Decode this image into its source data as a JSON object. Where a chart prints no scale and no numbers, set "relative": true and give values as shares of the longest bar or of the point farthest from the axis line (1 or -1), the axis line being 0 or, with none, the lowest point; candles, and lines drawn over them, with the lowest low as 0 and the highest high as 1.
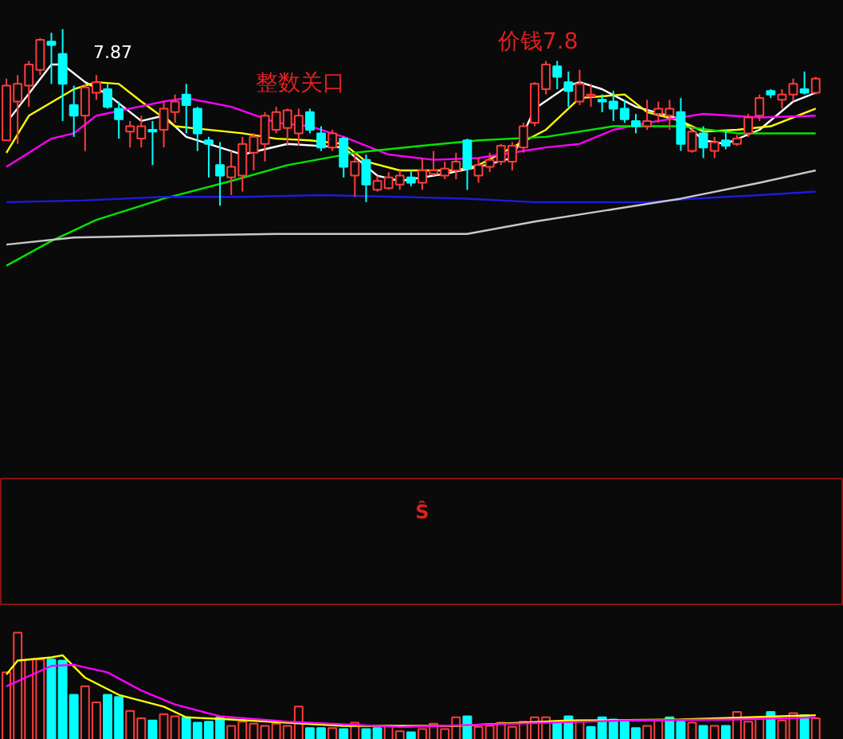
{
  "chart_data": [
    {
      "type": "candlestick",
      "relative": true,
      "categories": [
        null,
        null,
        null,
        null,
        null,
        null,
        null,
        null,
        null,
        null,
        null,
        null,
        null,
        null,
        null,
        null,
        null,
        null,
        null,
        null,
        null,
        null,
        null,
        null,
        null,
        null,
        null,
        null,
        null,
        null,
        null,
        null,
        null,
        null,
        null,
        null,
        null,
        null,
        null,
        null,
        null,
        null,
        null,
        null,
        null,
        null,
        null,
        null,
        null,
        null,
        null,
        null,
        null,
        null,
        null,
        null,
        null,
        null,
        null,
        null,
        null,
        null,
        null,
        null,
        null,
        null,
        null,
        null,
        null,
        null,
        null,
        null,
        null
      ],
      "ohlc": [
        [
          0.37,
          0.72,
          0.37,
          0.68
        ],
        [
          0.59,
          0.74,
          0.35,
          0.69
        ],
        [
          0.68,
          0.82,
          0.56,
          0.8
        ],
        [
          0.77,
          0.95,
          0.74,
          0.94
        ],
        [
          0.93,
          0.98,
          0.69,
          0.91
        ],
        [
          0.86,
          1.0,
          0.48,
          0.69
        ],
        [
          0.57,
          0.68,
          0.39,
          0.51
        ],
        [
          0.51,
          0.69,
          0.31,
          0.67
        ],
        [
          0.64,
          0.74,
          0.6,
          0.7
        ],
        [
          0.66,
          0.69,
          0.55,
          0.56
        ],
        [
          0.55,
          0.59,
          0.38,
          0.49
        ],
        [
          0.42,
          0.48,
          0.33,
          0.45
        ],
        [
          0.38,
          0.51,
          0.33,
          0.45
        ],
        [
          0.43,
          0.48,
          0.23,
          0.42
        ],
        [
          0.43,
          0.59,
          0.33,
          0.55
        ],
        [
          0.53,
          0.63,
          0.47,
          0.59
        ],
        [
          0.63,
          0.69,
          0.41,
          0.57
        ],
        [
          0.55,
          0.56,
          0.31,
          0.41
        ],
        [
          0.37,
          0.39,
          0.16,
          0.35
        ],
        [
          0.23,
          0.36,
          0,
          0.17
        ],
        [
          0.16,
          0.31,
          0.06,
          0.22
        ],
        [
          0.17,
          0.39,
          0.08,
          0.35
        ],
        [
          0.3,
          0.41,
          0.2,
          0.39
        ],
        [
          0.35,
          0.53,
          0.25,
          0.51
        ],
        [
          0.43,
          0.56,
          0.41,
          0.53
        ],
        [
          0.44,
          0.55,
          0.34,
          0.54
        ],
        [
          0.41,
          0.55,
          0.34,
          0.51
        ],
        [
          0.53,
          0.55,
          0.41,
          0.43
        ],
        [
          0.41,
          0.45,
          0.31,
          0.33
        ],
        [
          0.33,
          0.43,
          0.31,
          0.41
        ],
        [
          0.38,
          0.39,
          0.16,
          0.22
        ],
        [
          0.17,
          0.3,
          0.05,
          0.25
        ],
        [
          0.26,
          0.29,
          0.02,
          0.12
        ],
        [
          0.09,
          0.17,
          0.08,
          0.14
        ],
        [
          0.1,
          0.19,
          0.09,
          0.16
        ],
        [
          0.12,
          0.2,
          0.09,
          0.17
        ],
        [
          0.16,
          0.2,
          0.11,
          0.13
        ],
        [
          0.13,
          0.27,
          0.09,
          0.2
        ],
        [
          0.18,
          0.31,
          0.17,
          0.2
        ],
        [
          0.17,
          0.25,
          0.15,
          0.21
        ],
        [
          0.2,
          0.3,
          0.15,
          0.25
        ],
        [
          0.37,
          0.38,
          0.09,
          0.21
        ],
        [
          0.17,
          0.27,
          0.13,
          0.23
        ],
        [
          0.22,
          0.3,
          0.19,
          0.26
        ],
        [
          0.25,
          0.35,
          0.23,
          0.34
        ],
        [
          0.25,
          0.36,
          0.2,
          0.34
        ],
        [
          0.33,
          0.47,
          0.3,
          0.45
        ],
        [
          0.47,
          0.7,
          0.45,
          0.69
        ],
        [
          0.66,
          0.82,
          0.63,
          0.8
        ],
        [
          0.79,
          0.82,
          0.66,
          0.73
        ],
        [
          0.7,
          0.76,
          0.56,
          0.65
        ],
        [
          0.59,
          0.77,
          0.57,
          0.69
        ],
        [
          0.62,
          0.69,
          0.56,
          0.63
        ],
        [
          0.6,
          0.63,
          0.53,
          0.59
        ],
        [
          0.59,
          0.65,
          0.48,
          0.55
        ],
        [
          0.55,
          0.6,
          0.47,
          0.49
        ],
        [
          0.48,
          0.52,
          0.41,
          0.45
        ],
        [
          0.45,
          0.6,
          0.43,
          0.48
        ],
        [
          0.52,
          0.59,
          0.47,
          0.55
        ],
        [
          0.51,
          0.6,
          0.43,
          0.55
        ],
        [
          0.53,
          0.61,
          0.31,
          0.35
        ],
        [
          0.31,
          0.45,
          0.3,
          0.42
        ],
        [
          0.41,
          0.45,
          0.27,
          0.33
        ],
        [
          0.31,
          0.39,
          0.27,
          0.36
        ],
        [
          0.37,
          0.43,
          0.32,
          0.34
        ],
        [
          0.35,
          0.4,
          0.34,
          0.38
        ],
        [
          0.41,
          0.52,
          0.39,
          0.5
        ],
        [
          0.51,
          0.63,
          0.48,
          0.61
        ],
        [
          0.65,
          0.66,
          0.61,
          0.63
        ],
        [
          0.6,
          0.66,
          0.55,
          0.63
        ],
        [
          0.63,
          0.72,
          0.59,
          0.69
        ],
        [
          0.66,
          0.76,
          0.63,
          0.64
        ],
        [
          0.64,
          0.73,
          0.63,
          0.72
        ]
      ],
      "colors": [
        "#ff3c3c",
        "#ff3c3c",
        "#ff3c3c",
        "#ff3c3c",
        "#00ffff",
        "#00ffff",
        "#00ffff",
        "#ff3c3c",
        "#ff3c3c",
        "#00ffff",
        "#00ffff",
        "#ff3c3c",
        "#ff3c3c",
        "#00ffff",
        "#ff3c3c",
        "#ff3c3c",
        "#00ffff",
        "#00ffff",
        "#00ffff",
        "#00ffff",
        "#ff3c3c",
        "#ff3c3c",
        "#ff3c3c",
        "#ff3c3c",
        "#ff3c3c",
        "#ff3c3c",
        "#ff3c3c",
        "#00ffff",
        "#00ffff",
        "#ff3c3c",
        "#00ffff",
        "#ff3c3c",
        "#00ffff",
        "#ff3c3c",
        "#ff3c3c",
        "#ff3c3c",
        "#00ffff",
        "#ff3c3c",
        "#ff3c3c",
        "#ff3c3c",
        "#ff3c3c",
        "#00ffff",
        "#ff3c3c",
        "#ff3c3c",
        "#ff3c3c",
        "#ff3c3c",
        "#ff3c3c",
        "#ff3c3c",
        "#ff3c3c",
        "#00ffff",
        "#00ffff",
        "#ff3c3c",
        "#ff3c3c",
        "#00ffff",
        "#00ffff",
        "#00ffff",
        "#00ffff",
        "#ff3c3c",
        "#ff3c3c",
        "#ff3c3c",
        "#00ffff",
        "#ff3c3c",
        "#00ffff",
        "#ff3c3c",
        "#00ffff",
        "#ff3c3c",
        "#ff3c3c",
        "#ff3c3c",
        "#00ffff",
        "#ff3c3c",
        "#ff3c3c",
        "#00ffff",
        "#ff3c3c"
      ],
      "series": [
        {
          "type": "line",
          "color": "#ffffff",
          "values": [
            0.47,
            null,
            null,
            null,
            0.8,
            0.8,
            null,
            0.7,
            null,
            0.63,
            null,
            null,
            0.48,
            null,
            0.51,
            null,
            0.39,
            null,
            null,
            null,
            null,
            0.29,
            null,
            null,
            null,
            0.35,
            null,
            null,
            null,
            null,
            0.33,
            null,
            null,
            0.17,
            null,
            0.14,
            null,
            null,
            null,
            0.18,
            null,
            null,
            0.22,
            null,
            null,
            0.27,
            null,
            0.55,
            null,
            null,
            0.68,
            0.7,
            null,
            0.66,
            null,
            null,
            0.56,
            null,
            null,
            null,
            0.49,
            null,
            0.37,
            null,
            0.35,
            null,
            null,
            0.43,
            null,
            null,
            0.59,
            null,
            0.64
          ]
        },
        {
          "type": "line",
          "color": "#ffff00",
          "values": [
            0.3,
            null,
            0.51,
            null,
            null,
            null,
            0.66,
            null,
            0.7,
            null,
            0.69,
            null,
            0.59,
            null,
            null,
            0.45,
            null,
            null,
            null,
            null,
            null,
            0.41,
            null,
            null,
            0.38,
            null,
            null,
            0.37,
            null,
            null,
            0.35,
            null,
            0.25,
            null,
            null,
            0.2,
            null,
            null,
            null,
            null,
            0.2,
            null,
            0.23,
            null,
            null,
            0.33,
            null,
            null,
            0.43,
            null,
            null,
            0.61,
            null,
            null,
            null,
            0.63,
            null,
            0.53,
            null,
            null,
            0.48,
            null,
            0.42,
            null,
            null,
            0.43,
            null,
            null,
            0.45,
            null,
            null,
            null,
            0.55
          ]
        },
        {
          "type": "line",
          "color": "#ff00ff",
          "values": [
            0.22,
            null,
            null,
            null,
            0.38,
            null,
            0.41,
            null,
            0.51,
            null,
            null,
            0.55,
            null,
            null,
            0.59,
            null,
            0.61,
            null,
            null,
            null,
            0.56,
            null,
            null,
            null,
            0.47,
            null,
            null,
            0.45,
            null,
            null,
            0.39,
            null,
            null,
            null,
            0.29,
            null,
            null,
            null,
            0.26,
            null,
            null,
            null,
            0.27,
            null,
            null,
            0.3,
            null,
            null,
            0.33,
            null,
            null,
            0.35,
            null,
            null,
            0.43,
            null,
            null,
            0.47,
            null,
            null,
            null,
            null,
            0.52,
            null,
            null,
            null,
            null,
            0.5,
            null,
            null,
            null,
            null,
            0.51
          ]
        },
        {
          "type": "line",
          "color": "#00e600",
          "values": [
            -0.34,
            null,
            null,
            null,
            -0.2,
            null,
            null,
            null,
            -0.08,
            null,
            null,
            null,
            null,
            null,
            0.04,
            null,
            null,
            null,
            null,
            null,
            0.14,
            null,
            null,
            null,
            null,
            0.23,
            null,
            null,
            null,
            null,
            null,
            0.3,
            null,
            null,
            null,
            null,
            null,
            0.34,
            null,
            null,
            null,
            null,
            0.37,
            null,
            null,
            null,
            null,
            null,
            0.39,
            null,
            null,
            null,
            null,
            null,
            0.45,
            null,
            null,
            null,
            null,
            null,
            0.45,
            null,
            null,
            null,
            null,
            0.41,
            null,
            null,
            null,
            null,
            null,
            null,
            0.41
          ]
        },
        {
          "type": "line",
          "color": "#1c1cdc",
          "values": [
            0.02,
            null,
            null,
            null,
            null,
            null,
            null,
            0.03,
            null,
            null,
            null,
            null,
            null,
            null,
            0.05,
            null,
            null,
            null,
            null,
            null,
            null,
            0.05,
            null,
            null,
            null,
            null,
            null,
            null,
            0.06,
            null,
            null,
            null,
            null,
            null,
            null,
            0.05,
            null,
            null,
            null,
            null,
            null,
            0.04,
            null,
            null,
            null,
            null,
            null,
            0.02,
            null,
            null,
            null,
            null,
            null,
            0.02,
            null,
            null,
            null,
            0.02,
            null,
            null,
            null,
            0.04,
            null,
            null,
            null,
            null,
            null,
            0.06,
            null,
            null,
            null,
            null,
            0.08
          ]
        },
        {
          "type": "line",
          "color": "#c8c8c8",
          "values": [
            -0.22,
            null,
            null,
            null,
            null,
            null,
            -0.18,
            null,
            null,
            null,
            null,
            null,
            null,
            null,
            -0.17,
            null,
            null,
            null,
            null,
            null,
            null,
            null,
            null,
            null,
            -0.16,
            null,
            null,
            null,
            null,
            null,
            null,
            null,
            null,
            null,
            -0.16,
            null,
            null,
            null,
            null,
            null,
            null,
            -0.16,
            null,
            null,
            null,
            null,
            null,
            -0.09,
            null,
            null,
            null,
            null,
            null,
            null,
            -0.02,
            null,
            null,
            null,
            null,
            null,
            0.04,
            null,
            null,
            null,
            null,
            null,
            null,
            0.13,
            null,
            null,
            null,
            null,
            0.2
          ]
        }
      ],
      "annotations": [
        "7.87",
        "整数关口",
        "价钱7.8"
      ]
    },
    {
      "type": "other",
      "annotations": [
        "Ŝ"
      ]
    },
    {
      "type": "bar",
      "relative": true,
      "categories": [
        null,
        null,
        null,
        null,
        null,
        null,
        null,
        null,
        null,
        null,
        null,
        null,
        null,
        null,
        null,
        null,
        null,
        null,
        null,
        null,
        null,
        null,
        null,
        null,
        null,
        null,
        null,
        null,
        null,
        null,
        null,
        null,
        null,
        null,
        null,
        null,
        null,
        null,
        null,
        null,
        null,
        null,
        null,
        null,
        null,
        null,
        null,
        null,
        null,
        null,
        null,
        null,
        null,
        null,
        null,
        null,
        null,
        null,
        null,
        null,
        null,
        null,
        null,
        null,
        null,
        null,
        null,
        null,
        null,
        null,
        null,
        null,
        null
      ],
      "values": [
        0.63,
        1.0,
        0.75,
        0.75,
        0.75,
        0.74,
        0.42,
        0.5,
        0.35,
        0.42,
        0.4,
        0.27,
        0.2,
        0.18,
        0.24,
        0.22,
        0.21,
        0.16,
        0.17,
        0.21,
        0.13,
        0.17,
        0.15,
        0.13,
        0.15,
        0.13,
        0.31,
        0.11,
        0.11,
        0.11,
        0.1,
        0.16,
        0.1,
        0.11,
        0.13,
        0.08,
        0.07,
        0.1,
        0.15,
        0.1,
        0.21,
        0.22,
        0.12,
        0.13,
        0.16,
        0.12,
        0.17,
        0.21,
        0.21,
        0.17,
        0.22,
        0.18,
        0.12,
        0.21,
        0.19,
        0.18,
        0.11,
        0.13,
        0.18,
        0.21,
        0.17,
        0.16,
        0.13,
        0.13,
        0.13,
        0.26,
        0.17,
        0.2,
        0.26,
        0.18,
        0.25,
        0.23,
        0.2
      ],
      "colors": [
        "#ff3c3c",
        "#ff3c3c",
        "#ff3c3c",
        "#ff3c3c",
        "#00ffff",
        "#00ffff",
        "#00ffff",
        "#ff3c3c",
        "#ff3c3c",
        "#00ffff",
        "#00ffff",
        "#ff3c3c",
        "#ff3c3c",
        "#00ffff",
        "#ff3c3c",
        "#ff3c3c",
        "#00ffff",
        "#00ffff",
        "#00ffff",
        "#00ffff",
        "#ff3c3c",
        "#ff3c3c",
        "#ff3c3c",
        "#ff3c3c",
        "#ff3c3c",
        "#ff3c3c",
        "#ff3c3c",
        "#00ffff",
        "#00ffff",
        "#ff3c3c",
        "#00ffff",
        "#ff3c3c",
        "#00ffff",
        "#00ffff",
        "#ff3c3c",
        "#ff3c3c",
        "#00ffff",
        "#ff3c3c",
        "#ff3c3c",
        "#ff3c3c",
        "#ff3c3c",
        "#00ffff",
        "#ff3c3c",
        "#ff3c3c",
        "#ff3c3c",
        "#ff3c3c",
        "#ff3c3c",
        "#ff3c3c",
        "#ff3c3c",
        "#00ffff",
        "#00ffff",
        "#ff3c3c",
        "#00ffff",
        "#00ffff",
        "#00ffff",
        "#00ffff",
        "#00ffff",
        "#ff3c3c",
        "#ff3c3c",
        "#00ffff",
        "#00ffff",
        "#ff3c3c",
        "#00ffff",
        "#ff3c3c",
        "#00ffff",
        "#ff3c3c",
        "#ff3c3c",
        "#ff3c3c",
        "#00ffff",
        "#ff3c3c",
        "#ff3c3c",
        "#00ffff",
        "#ff3c3c"
      ],
      "series": [
        {
          "type": "line",
          "color": "#ffff00",
          "values": [
            0.61,
            0.74,
            null,
            null,
            0.77,
            0.79,
            null,
            0.58,
            null,
            null,
            0.42,
            null,
            null,
            null,
            0.31,
            null,
            0.21,
            null,
            null,
            null,
            0.19,
            null,
            null,
            null,
            null,
            null,
            null,
            null,
            null,
            null,
            0.13,
            null,
            null,
            null,
            null,
            null,
            null,
            null,
            null,
            null,
            0.13,
            null,
            null,
            null,
            null,
            null,
            null,
            null,
            null,
            null,
            0.18,
            null,
            null,
            null,
            null,
            null,
            null,
            null,
            null,
            null,
            0.19,
            null,
            null,
            null,
            null,
            null,
            null,
            null,
            null,
            null,
            null,
            null,
            0.23
          ]
        },
        {
          "type": "line",
          "color": "#ff00ff",
          "values": [
            0.5,
            null,
            null,
            null,
            0.69,
            null,
            0.7,
            null,
            null,
            0.63,
            null,
            null,
            0.46,
            null,
            null,
            0.33,
            null,
            null,
            null,
            0.22,
            null,
            null,
            null,
            null,
            null,
            0.17,
            null,
            null,
            null,
            null,
            null,
            null,
            null,
            null,
            null,
            0.12,
            null,
            null,
            null,
            null,
            null,
            null,
            null,
            null,
            null,
            0.15,
            null,
            null,
            null,
            null,
            null,
            null,
            null,
            null,
            null,
            0.18,
            null,
            null,
            null,
            null,
            null,
            null,
            null,
            null,
            null,
            0.19,
            null,
            null,
            null,
            null,
            null,
            null,
            0.21
          ]
        }
      ]
    }
  ]
}
